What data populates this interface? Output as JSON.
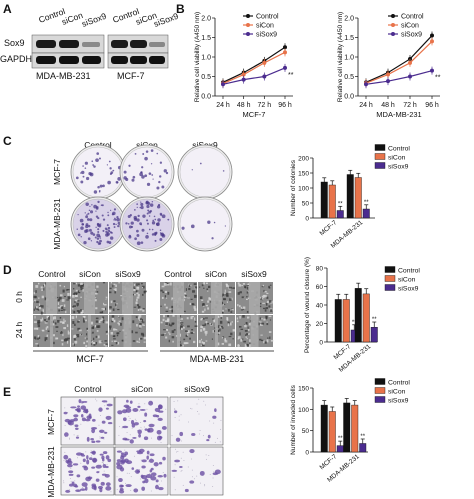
{
  "panels": {
    "A": "A",
    "B": "B",
    "C": "C",
    "D": "D",
    "E": "E"
  },
  "colors": {
    "control": "#111111",
    "sicon": "#e8734a",
    "sisox9": "#4b2c8f"
  },
  "blot": {
    "groups": [
      "Control",
      "siCon",
      "siSox9"
    ],
    "proteins": [
      "Sox9",
      "GAPDH"
    ],
    "cell_lines": [
      "MDA-MB-231",
      "MCF-7"
    ]
  },
  "legend": [
    "Control",
    "siCon",
    "siSox9"
  ],
  "sig": "**",
  "line_charts": [
    {
      "id": "mcf7",
      "xlabel": "MCF-7",
      "ylabel": "Relative cell viability (A450 nm)",
      "x": [
        "24 h",
        "48 h",
        "72 h",
        "96 h"
      ],
      "yticks": [
        "0.0",
        "0.5",
        "1.0",
        "1.5",
        "2.0"
      ]
    },
    {
      "id": "mda",
      "xlabel": "MDA-MB-231",
      "ylabel": "Relative cell viability (A450 nm)",
      "x": [
        "24 h",
        "48 h",
        "72 h",
        "96 h"
      ],
      "yticks": [
        "0.0",
        "0.5",
        "1.0",
        "1.5",
        "2.0"
      ]
    }
  ],
  "colony_panel": {
    "columns": [
      "Control",
      "siCon",
      "siSox9"
    ],
    "rows": [
      "MCF-7",
      "MDA-MB-231"
    ]
  },
  "wound_panel": {
    "columns": [
      "Control",
      "siCon",
      "siSox9",
      "Control",
      "siCon",
      "siSox9"
    ],
    "rows": [
      "0 h",
      "24 h"
    ],
    "groups": [
      "MCF-7",
      "MDA-MB-231"
    ]
  },
  "invasion_panel": {
    "columns": [
      "Control",
      "siCon",
      "siSox9"
    ],
    "rows": [
      "MCF-7",
      "MDA-MB-231"
    ]
  },
  "chart_data": [
    {
      "type": "line",
      "id": "B-MCF-7",
      "categories": [
        "24 h",
        "48 h",
        "72 h",
        "96 h"
      ],
      "xlabel": "MCF-7",
      "ylabel": "Relative cell viability (A450 nm)",
      "ylim": [
        0,
        2
      ],
      "series": [
        {
          "name": "Control",
          "values": [
            0.35,
            0.6,
            0.9,
            1.25
          ]
        },
        {
          "name": "siCon",
          "values": [
            0.32,
            0.55,
            0.85,
            1.12
          ]
        },
        {
          "name": "siSox9",
          "values": [
            0.3,
            0.42,
            0.5,
            0.72
          ]
        }
      ]
    },
    {
      "type": "line",
      "id": "B-MDA-MB-231",
      "categories": [
        "24 h",
        "48 h",
        "72 h",
        "96 h"
      ],
      "xlabel": "MDA-MB-231",
      "ylabel": "Relative cell viability (A450 nm)",
      "ylim": [
        0,
        2
      ],
      "series": [
        {
          "name": "Control",
          "values": [
            0.35,
            0.6,
            0.95,
            1.55
          ]
        },
        {
          "name": "siCon",
          "values": [
            0.33,
            0.55,
            0.85,
            1.4
          ]
        },
        {
          "name": "siSox9",
          "values": [
            0.3,
            0.38,
            0.5,
            0.65
          ]
        }
      ]
    },
    {
      "type": "bar",
      "id": "C",
      "categories": [
        "MCF-7",
        "MDA-MB-231"
      ],
      "ylabel": "Number of colonies",
      "ylim": [
        0,
        200
      ],
      "yticks": [
        "0",
        "50",
        "100",
        "150",
        "200"
      ],
      "series": [
        {
          "name": "Control",
          "values": [
            120,
            145
          ]
        },
        {
          "name": "siCon",
          "values": [
            110,
            135
          ]
        },
        {
          "name": "siSox9",
          "values": [
            25,
            30
          ]
        }
      ]
    },
    {
      "type": "bar",
      "id": "D",
      "categories": [
        "MCF-7",
        "MDA-MB-231"
      ],
      "ylabel": "Percentage of wound closure (%)",
      "ylim": [
        0,
        80
      ],
      "yticks": [
        "0",
        "20",
        "40",
        "60",
        "80"
      ],
      "series": [
        {
          "name": "Control",
          "values": [
            46,
            58
          ]
        },
        {
          "name": "siCon",
          "values": [
            46,
            52
          ]
        },
        {
          "name": "siSox9",
          "values": [
            13,
            16
          ]
        }
      ]
    },
    {
      "type": "bar",
      "id": "E",
      "categories": [
        "MCF-7",
        "MDA-MB-231"
      ],
      "ylabel": "Number of invaded cells",
      "ylim": [
        0,
        150
      ],
      "yticks": [
        "0",
        "50",
        "100",
        "150"
      ],
      "series": [
        {
          "name": "Control",
          "values": [
            110,
            115
          ]
        },
        {
          "name": "siCon",
          "values": [
            95,
            110
          ]
        },
        {
          "name": "siSox9",
          "values": [
            15,
            20
          ]
        }
      ]
    }
  ]
}
